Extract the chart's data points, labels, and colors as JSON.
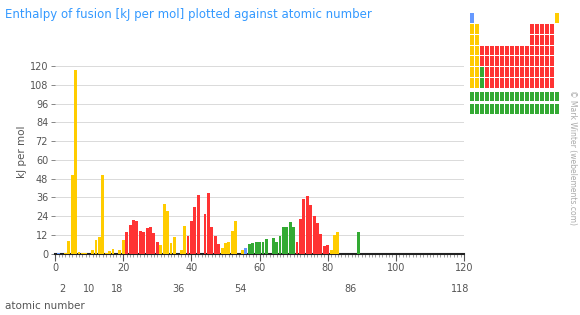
{
  "title": "Enthalpy of fusion [kJ per mol] plotted against atomic number",
  "ylabel": "kJ per mol",
  "xlabel": "atomic number",
  "title_color": "#3399ff",
  "axis_label_color": "#555555",
  "background_color": "#ffffff",
  "watermark": "© Mark Winter (webelements.com)",
  "xlim": [
    0,
    119
  ],
  "ylim": [
    0,
    130
  ],
  "yticks": [
    0,
    12,
    24,
    36,
    48,
    60,
    72,
    84,
    96,
    108,
    120
  ],
  "xticks_major": [
    0,
    20,
    40,
    60,
    80,
    100,
    120
  ],
  "xticks_secondary": [
    2,
    10,
    18,
    36,
    54,
    86,
    118
  ],
  "values": [
    0.117,
    0.0,
    0.335,
    7.895,
    50.2,
    117.4,
    0.72,
    0.444,
    0.26,
    0.0,
    2.6,
    8.48,
    10.71,
    50.2,
    0.659,
    1.727,
    3.2,
    1.18,
    2.33,
    8.54,
    14.1,
    18.6,
    21.5,
    21.0,
    14.64,
    13.81,
    16.06,
    17.15,
    13.26,
    7.322,
    5.59,
    31.8,
    27.2,
    6.694,
    10.57,
    4.64,
    2.19,
    17.57,
    11.4,
    21.0,
    30.0,
    37.48,
    0.0,
    25.52,
    38.59,
    16.74,
    11.3,
    6.21,
    3.281,
    7.03,
    7.22,
    14.73,
    20.9,
    18.16,
    2.3,
    3.55,
    6.2,
    6.89,
    7.1,
    7.13,
    7.14,
    9.2,
    0.0,
    10.0,
    7.36,
    11.06,
    17.2,
    16.8,
    19.9,
    16.84,
    7.66,
    22.0,
    35.2,
    36.57,
    31.0,
    24.04,
    19.7,
    12.72,
    4.77,
    5.55,
    2.295,
    11.97,
    13.81,
    0.0,
    0.0,
    0.0,
    0.0,
    0.0,
    14.0,
    0.0,
    0.0,
    0.0,
    0.0,
    0.0,
    0.0,
    0.0,
    0.0,
    0.0,
    0.0,
    0.0,
    0.0,
    0.0,
    0.0,
    0.0,
    0.0,
    0.0,
    0.0,
    0.0,
    0.0,
    0.0,
    0.0,
    0.0,
    0.0,
    0.0,
    0.0,
    0.0,
    0.0,
    0.0,
    0.0,
    0.0
  ],
  "colors": [
    "#6699ff",
    "#ffffff",
    "#ffcc00",
    "#ffcc00",
    "#ffcc00",
    "#ffcc00",
    "#ffcc00",
    "#ffcc00",
    "#ffcc00",
    "#ffffff",
    "#ffcc00",
    "#ffcc00",
    "#ffcc00",
    "#ffcc00",
    "#ffcc00",
    "#ffcc00",
    "#ffcc00",
    "#ffffff",
    "#ffcc00",
    "#ffcc00",
    "#ff3333",
    "#ff3333",
    "#ff3333",
    "#ff3333",
    "#ff3333",
    "#ff3333",
    "#ff3333",
    "#ff3333",
    "#ff3333",
    "#ff3333",
    "#ffcc00",
    "#ffcc00",
    "#ffcc00",
    "#ffcc00",
    "#ffcc00",
    "#ffffff",
    "#ffcc00",
    "#ffcc00",
    "#ff3333",
    "#ff3333",
    "#ff3333",
    "#ff3333",
    "#ff3333",
    "#ff3333",
    "#ff3333",
    "#ff3333",
    "#ff3333",
    "#ff3333",
    "#ffcc00",
    "#ffcc00",
    "#ffcc00",
    "#ffcc00",
    "#ffcc00",
    "#ffffff",
    "#ffcc00",
    "#6699ff",
    "#33aa33",
    "#33aa33",
    "#33aa33",
    "#33aa33",
    "#33aa33",
    "#33aa33",
    "#33aa33",
    "#33aa33",
    "#33aa33",
    "#33aa33",
    "#33aa33",
    "#33aa33",
    "#33aa33",
    "#33aa33",
    "#ff3333",
    "#ff3333",
    "#ff3333",
    "#ff3333",
    "#ff3333",
    "#ff3333",
    "#ff3333",
    "#ff3333",
    "#ff3333",
    "#ff3333",
    "#ffcc00",
    "#ffcc00",
    "#ffcc00",
    "#ffcc00",
    "#ffcc00",
    "#ffffff",
    "#ffcc00",
    "#6699ff",
    "#33aa33",
    "#33aa33",
    "#33aa33",
    "#33aa33",
    "#33aa33",
    "#33aa33",
    "#33aa33",
    "#33aa33",
    "#33aa33",
    "#33aa33",
    "#33aa33",
    "#33aa33",
    "#33aa33",
    "#33aa33",
    "#ff3333",
    "#ff3333",
    "#ff3333",
    "#ff3333",
    "#ff3333",
    "#ff3333",
    "#ff3333",
    "#ff3333",
    "#ff3333",
    "#ff3333",
    "#ffcc00",
    "#ffcc00",
    "#ffcc00",
    "#ffcc00",
    "#ffcc00",
    "#ffffff",
    "#ffffff",
    "#ffffff"
  ],
  "pt_blocks": [
    [
      0,
      6,
      "#6699ff"
    ],
    [
      17,
      6,
      "#ffcc00"
    ],
    [
      0,
      5,
      "#ffcc00"
    ],
    [
      1,
      5,
      "#ffcc00"
    ],
    [
      12,
      5,
      "#ff3333"
    ],
    [
      13,
      5,
      "#ff3333"
    ],
    [
      14,
      5,
      "#ff3333"
    ],
    [
      15,
      5,
      "#ff3333"
    ],
    [
      16,
      5,
      "#ff3333"
    ],
    [
      17,
      5,
      "#ffffff"
    ],
    [
      0,
      4,
      "#ffcc00"
    ],
    [
      1,
      4,
      "#ffcc00"
    ],
    [
      12,
      4,
      "#ff3333"
    ],
    [
      13,
      4,
      "#ff3333"
    ],
    [
      14,
      4,
      "#ff3333"
    ],
    [
      15,
      4,
      "#ff3333"
    ],
    [
      16,
      4,
      "#ff3333"
    ],
    [
      17,
      4,
      "#ffffff"
    ],
    [
      0,
      3,
      "#ffcc00"
    ],
    [
      1,
      3,
      "#ffcc00"
    ],
    [
      2,
      3,
      "#ff3333"
    ],
    [
      3,
      3,
      "#ff3333"
    ],
    [
      4,
      3,
      "#ff3333"
    ],
    [
      5,
      3,
      "#ff3333"
    ],
    [
      6,
      3,
      "#ff3333"
    ],
    [
      7,
      3,
      "#ff3333"
    ],
    [
      8,
      3,
      "#ff3333"
    ],
    [
      9,
      3,
      "#ff3333"
    ],
    [
      10,
      3,
      "#ff3333"
    ],
    [
      11,
      3,
      "#ff3333"
    ],
    [
      12,
      3,
      "#ff3333"
    ],
    [
      13,
      3,
      "#ff3333"
    ],
    [
      14,
      3,
      "#ff3333"
    ],
    [
      15,
      3,
      "#ff3333"
    ],
    [
      16,
      3,
      "#ff3333"
    ],
    [
      17,
      3,
      "#ffffff"
    ],
    [
      0,
      2,
      "#ffcc00"
    ],
    [
      1,
      2,
      "#ffcc00"
    ],
    [
      2,
      2,
      "#ff3333"
    ],
    [
      3,
      2,
      "#ff3333"
    ],
    [
      4,
      2,
      "#ff3333"
    ],
    [
      5,
      2,
      "#ff3333"
    ],
    [
      6,
      2,
      "#ff3333"
    ],
    [
      7,
      2,
      "#ff3333"
    ],
    [
      8,
      2,
      "#ff3333"
    ],
    [
      9,
      2,
      "#ff3333"
    ],
    [
      10,
      2,
      "#ff3333"
    ],
    [
      11,
      2,
      "#ff3333"
    ],
    [
      12,
      2,
      "#ff3333"
    ],
    [
      13,
      2,
      "#ff3333"
    ],
    [
      14,
      2,
      "#ff3333"
    ],
    [
      15,
      2,
      "#ff3333"
    ],
    [
      16,
      2,
      "#ff3333"
    ],
    [
      17,
      2,
      "#ffffff"
    ],
    [
      0,
      1,
      "#ffcc00"
    ],
    [
      1,
      1,
      "#ffcc00"
    ],
    [
      2,
      1,
      "#33aa33"
    ],
    [
      3,
      1,
      "#ff3333"
    ],
    [
      4,
      1,
      "#ff3333"
    ],
    [
      5,
      1,
      "#ff3333"
    ],
    [
      6,
      1,
      "#ff3333"
    ],
    [
      7,
      1,
      "#ff3333"
    ],
    [
      8,
      1,
      "#ff3333"
    ],
    [
      9,
      1,
      "#ff3333"
    ],
    [
      10,
      1,
      "#ff3333"
    ],
    [
      11,
      1,
      "#ff3333"
    ],
    [
      12,
      1,
      "#ff3333"
    ],
    [
      13,
      1,
      "#ff3333"
    ],
    [
      14,
      1,
      "#ff3333"
    ],
    [
      15,
      1,
      "#ff3333"
    ],
    [
      16,
      1,
      "#ff3333"
    ],
    [
      17,
      1,
      "#ffffff"
    ],
    [
      0,
      0,
      "#ffcc00"
    ],
    [
      1,
      0,
      "#ffcc00"
    ],
    [
      2,
      0,
      "#33aa33"
    ],
    [
      3,
      0,
      "#ff3333"
    ],
    [
      4,
      0,
      "#ff3333"
    ],
    [
      5,
      0,
      "#ff3333"
    ],
    [
      6,
      0,
      "#ff3333"
    ],
    [
      7,
      0,
      "#ff3333"
    ],
    [
      8,
      0,
      "#ff3333"
    ],
    [
      9,
      0,
      "#ff3333"
    ],
    [
      10,
      0,
      "#ff3333"
    ],
    [
      11,
      0,
      "#ff3333"
    ],
    [
      12,
      0,
      "#ff3333"
    ],
    [
      13,
      0,
      "#ff3333"
    ],
    [
      14,
      0,
      "#ff3333"
    ],
    [
      15,
      0,
      "#ff3333"
    ],
    [
      16,
      0,
      "#ff3333"
    ],
    [
      17,
      0,
      "#ffffff"
    ]
  ],
  "pt_lan_row": [
    -1.3,
    "#33aa33"
  ],
  "pt_act_row": [
    -2.5,
    "#33aa33"
  ]
}
